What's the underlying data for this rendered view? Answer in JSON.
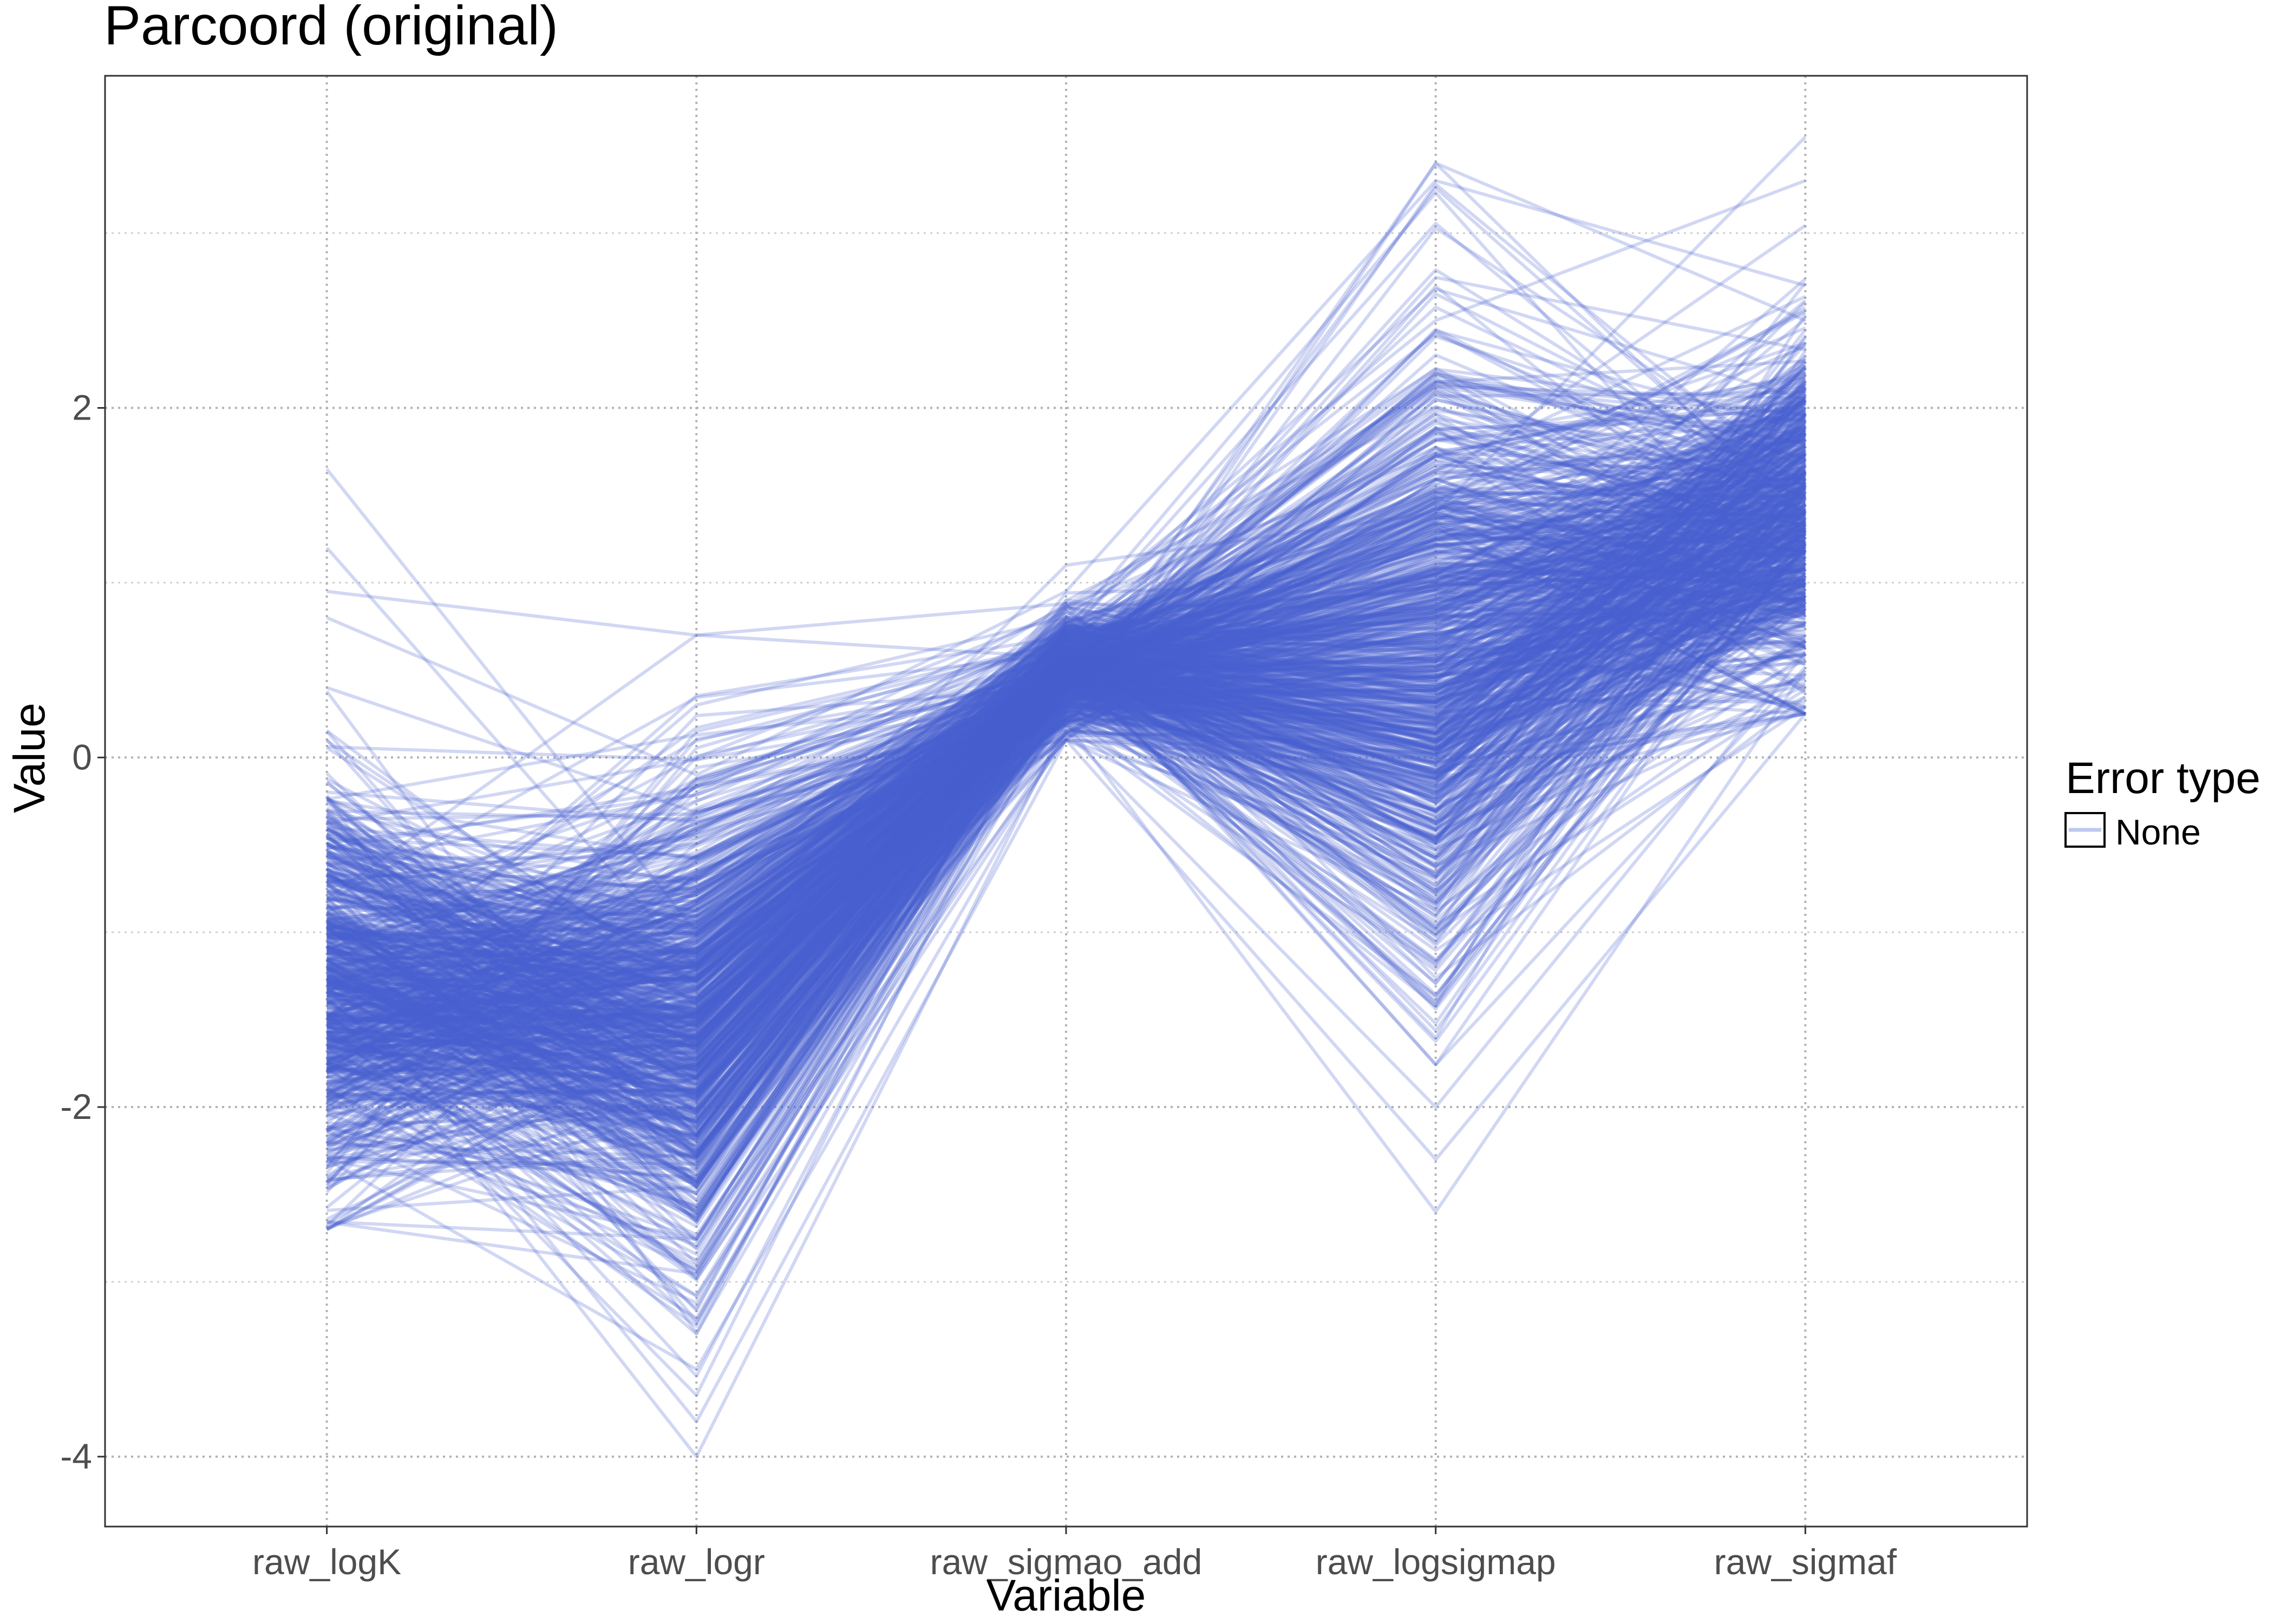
{
  "chart_data": {
    "type": "line",
    "subtype": "parallel-coordinates",
    "title": "Parcoord (original)",
    "xlabel": "Variable",
    "ylabel": "Value",
    "categories": [
      "raw_logK",
      "raw_logr",
      "raw_sigmao_add",
      "raw_logsigmap",
      "raw_sigmaf"
    ],
    "ylim": [
      -4.4,
      3.9
    ],
    "yticks": [
      -4,
      -2,
      0,
      2
    ],
    "grid": true,
    "grid_style": "dotted",
    "legend": {
      "title": "Error type",
      "entries": [
        "None"
      ],
      "position": "right"
    },
    "series_color": "#4660CF",
    "series_opacity": 0.25,
    "line_count": 800,
    "axis_ranges": {
      "raw_logK": [
        -2.7,
        1.65
      ],
      "raw_logr": [
        -4.0,
        0.7
      ],
      "raw_sigmao_add": [
        0.1,
        1.1
      ],
      "raw_logsigmap": [
        -2.6,
        3.4
      ],
      "raw_sigmaf": [
        0.25,
        3.55
      ]
    },
    "axis_centers": {
      "raw_logK": -1.3,
      "raw_logr": -1.5,
      "raw_sigmao_add": 0.5,
      "raw_logsigmap": 0.6,
      "raw_sigmaf": 1.4
    },
    "highlight_lines": [
      {
        "values": [
          0.95,
          0.7,
          0.88,
          0.85,
          1.2
        ]
      },
      {
        "values": [
          1.65,
          -1.0,
          0.5,
          0.6,
          1.3
        ]
      },
      {
        "values": [
          1.2,
          -1.2,
          0.3,
          -0.3,
          0.9
        ]
      },
      {
        "values": [
          -1.1,
          -1.8,
          0.35,
          3.4,
          2.5
        ]
      },
      {
        "values": [
          -1.3,
          -4.0,
          0.2,
          -0.5,
          0.9
        ]
      },
      {
        "values": [
          -2.7,
          -1.5,
          0.2,
          -2.6,
          0.5
        ]
      },
      {
        "values": [
          -0.5,
          -1.0,
          1.1,
          1.4,
          3.55
        ]
      },
      {
        "values": [
          -1.5,
          0.3,
          0.8,
          2.5,
          3.3
        ]
      },
      {
        "values": [
          -1.2,
          -3.8,
          0.1,
          -2.3,
          0.25
        ]
      },
      {
        "values": [
          -2.3,
          -3.5,
          0.15,
          -2.0,
          0.6
        ]
      },
      {
        "values": [
          0.8,
          -0.1,
          0.95,
          3.3,
          2.7
        ]
      }
    ]
  }
}
